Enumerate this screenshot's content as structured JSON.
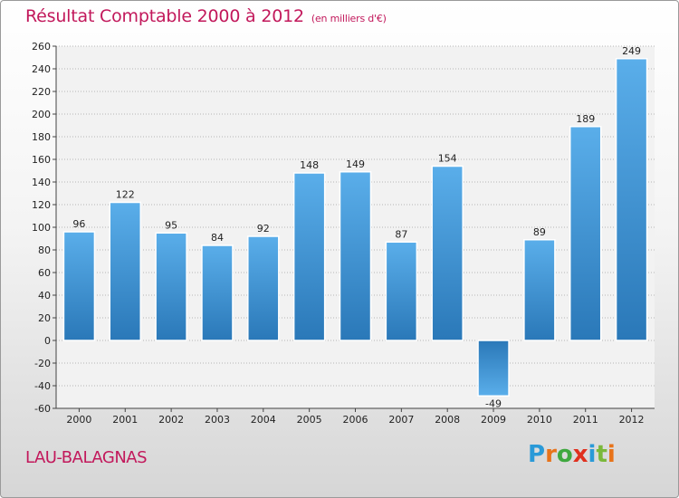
{
  "chart_data": {
    "type": "bar",
    "title": "Résultat Comptable 2000 à 2012",
    "subtitle": "(en milliers d'€)",
    "categories": [
      "2000",
      "2001",
      "2002",
      "2003",
      "2004",
      "2005",
      "2006",
      "2007",
      "2008",
      "2009",
      "2010",
      "2011",
      "2012"
    ],
    "values": [
      96,
      122,
      95,
      84,
      92,
      148,
      149,
      87,
      154,
      -49,
      89,
      189,
      249
    ],
    "ylim": [
      -60,
      260
    ],
    "yticks": [
      -60,
      -40,
      -20,
      0,
      20,
      40,
      60,
      80,
      100,
      120,
      140,
      160,
      180,
      200,
      220,
      240,
      260
    ],
    "grid": true,
    "xlabel": "",
    "ylabel": ""
  },
  "footer": {
    "place": "LAU-BALAGNAS",
    "logo_letters": [
      "P",
      "r",
      "o",
      "x",
      "i",
      "t",
      "i"
    ]
  },
  "colors": {
    "bar_light": "#5aaeea",
    "bar_dark": "#2a78b8",
    "title": "#c2185b",
    "logo": [
      "#2a9ad8",
      "#e8731a",
      "#3fa83f",
      "#e0301e",
      "#2a9ad8",
      "#7ab83a",
      "#e8731a"
    ]
  }
}
